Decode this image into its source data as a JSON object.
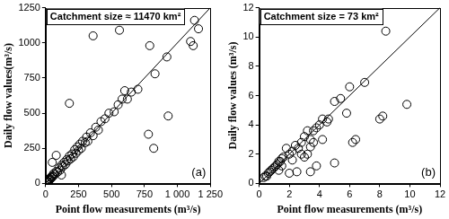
{
  "chart_data": [
    {
      "type": "scatter",
      "x_label": "Point flow measurements (m³/s)",
      "y_label": "Daily flow values(m³/s)",
      "annotations": [
        "Catchment size ≈ 11470 km²",
        "(a)"
      ],
      "xlim": [
        0,
        1250
      ],
      "xticks": [
        0,
        250,
        500,
        750,
        {
          "value": 1000,
          "label": "1 000"
        },
        {
          "value": 1250,
          "label": "1 250"
        }
      ],
      "ylim": [
        0,
        1250
      ],
      "yticks": [
        0,
        250,
        500,
        750,
        1000,
        1250
      ],
      "grid": false,
      "series": [
        {
          "type": "scatter",
          "marker": "circle",
          "color": "#000000",
          "x": [
            5,
            10,
            15,
            20,
            25,
            30,
            35,
            40,
            45,
            50,
            55,
            60,
            70,
            80,
            90,
            100,
            110,
            120,
            130,
            140,
            150,
            160,
            170,
            180,
            190,
            200,
            210,
            220,
            230,
            240,
            250,
            260,
            270,
            280,
            300,
            310,
            320,
            340,
            360,
            380,
            400,
            420,
            450,
            480,
            520,
            550,
            580,
            600,
            620,
            650,
            700,
            180,
            80,
            50,
            120,
            360,
            560,
            790,
            830,
            920,
            930,
            780,
            820,
            1120,
            1130,
            1160,
            1100
          ],
          "values": [
            8,
            12,
            14,
            25,
            22,
            35,
            30,
            45,
            40,
            55,
            50,
            70,
            65,
            85,
            80,
            110,
            95,
            130,
            120,
            150,
            135,
            170,
            160,
            195,
            175,
            210,
            190,
            240,
            215,
            260,
            235,
            280,
            250,
            300,
            290,
            330,
            300,
            360,
            340,
            400,
            380,
            440,
            460,
            500,
            510,
            560,
            600,
            660,
            600,
            650,
            670,
            570,
            200,
            150,
            60,
            1050,
            1090,
            980,
            780,
            900,
            480,
            350,
            250,
            980,
            1160,
            1100,
            1010
          ]
        },
        {
          "type": "line",
          "line_style": "solid",
          "color": "#000000",
          "x": [
            0,
            1250
          ],
          "values": [
            0,
            1250
          ]
        }
      ]
    },
    {
      "type": "scatter",
      "x_label": "Point flow measurements (m³/s)",
      "y_label": "Daily flow values (m³/s)",
      "annotations": [
        "Catchment size = 73 km²",
        "(b)"
      ],
      "xlim": [
        0,
        12
      ],
      "xticks": [
        0,
        2,
        4,
        6,
        8,
        10,
        12
      ],
      "ylim": [
        0,
        12
      ],
      "yticks": [
        0,
        2,
        4,
        6,
        8,
        10,
        12
      ],
      "grid": false,
      "series": [
        {
          "type": "scatter",
          "marker": "circle",
          "color": "#000000",
          "x": [
            0.3,
            0.4,
            0.5,
            0.6,
            0.7,
            0.8,
            0.9,
            1.0,
            1.1,
            1.2,
            1.3,
            1.4,
            1.5,
            1.6,
            1.8,
            2.0,
            2.2,
            2.4,
            2.6,
            2.8,
            3.0,
            3.2,
            3.4,
            3.6,
            3.8,
            4.0,
            4.2,
            4.5,
            4.6,
            5.0,
            5.4,
            5.8,
            6.0,
            7.0,
            8.4,
            1.3,
            1.5,
            2.0,
            2.2,
            2.5,
            2.8,
            3.0,
            3.2,
            3.4,
            3.6,
            3.4,
            3.8,
            4.2,
            5.0,
            6.2,
            6.4,
            8.0,
            8.2,
            9.8
          ],
          "values": [
            0.4,
            0.5,
            0.5,
            0.7,
            0.8,
            0.9,
            1.0,
            1.1,
            1.2,
            1.3,
            1.5,
            1.5,
            1.7,
            1.8,
            2.4,
            2.0,
            2.2,
            2.6,
            2.4,
            2.8,
            3.2,
            3.6,
            3.0,
            3.6,
            3.8,
            4.0,
            3.0,
            4.2,
            4.4,
            5.6,
            5.8,
            4.8,
            6.6,
            6.9,
            10.4,
            0.9,
            1.2,
            0.7,
            1.6,
            0.8,
            2.0,
            1.8,
            2.0,
            2.5,
            2.8,
            0.8,
            1.2,
            4.4,
            1.4,
            2.8,
            3.0,
            4.4,
            4.6,
            5.4
          ]
        },
        {
          "type": "line",
          "line_style": "solid",
          "color": "#000000",
          "x": [
            0,
            12
          ],
          "values": [
            0,
            12
          ]
        }
      ]
    }
  ]
}
